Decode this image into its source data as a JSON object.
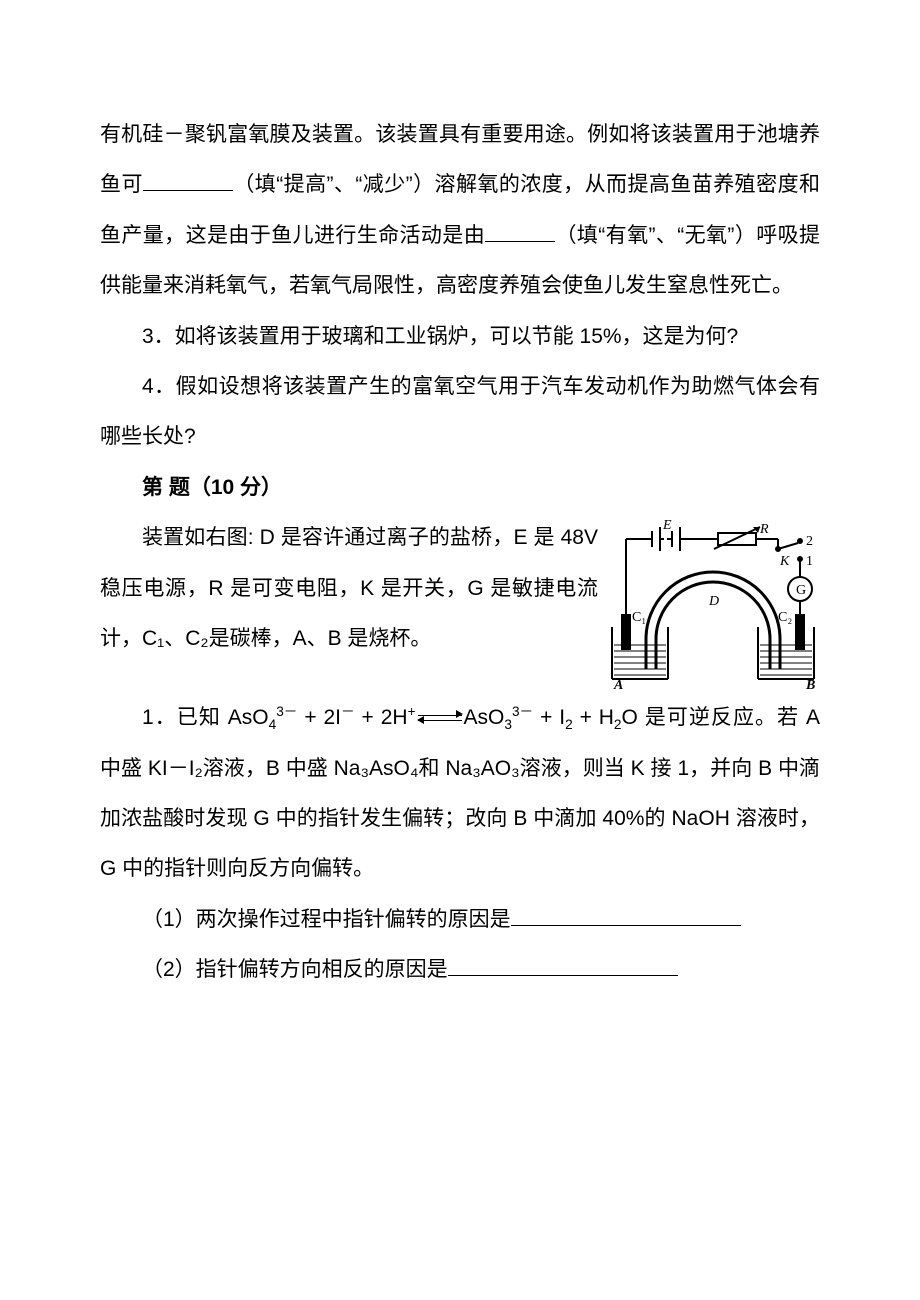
{
  "paragraphs": {
    "p1_a": "有机硅－聚钒富氧膜及装置。该装置具有重要用途。例如将该装置用于池塘养鱼可",
    "p1_b": "（填“提高”、“减少”）溶解氧的浓度，从而提高鱼苗养殖密度和鱼产量，这是由于鱼儿进行生命活动是由",
    "p1_c": "（填“有氧”、“无氧”）呼吸提供能量来消耗氧气，若氧气局限性，高密度养殖会使鱼儿发生窒息性死亡。",
    "p2": "3．如将该装置用于玻璃和工业锅炉，可以节能 15%，这是为何?",
    "p3": "4．假如设想将该装置产生的富氧空气用于汽车发动机作为助燃气体会有哪些长处?",
    "heading": "第 题（10 分）",
    "p4": "装置如右图: D 是容许通过离子的盐桥，E 是 48V 稳压电源，R 是可变电阻，K 是开关，G 是敏捷电流计，C₁、C₂是碳棒，A、B 是烧杯。",
    "p5_a": "1．已知 AsO",
    "p5_b": " + 2I",
    "p5_c": " + 2H",
    "p5_d": "AsO",
    "p5_e": " + I",
    "p5_f": " + H",
    "p5_g": "O 是可逆反应。若 A 中盛 KI－I₂溶液，B 中盛 Na₃AsO₄和 Na₃AO₃溶液，则当 K 接 1，并向 B 中滴加浓盐酸时发现 G 中的指针发生偏转；改向 B 中滴加 40%的 NaOH 溶液时，G 中的指针则向反方向偏转。",
    "q1": "（1）两次操作过程中指针偏转的原因是",
    "q2": "（2）指针偏转方向相反的原因是"
  },
  "blanks": {
    "w_short": 90,
    "w_med": 70,
    "w_long": 230
  },
  "figure": {
    "labels": {
      "E": "E",
      "R": "R",
      "K": "K",
      "G": "G",
      "D": "D",
      "C1": "C₁",
      "C2": "C₂",
      "A": "A",
      "B": "B",
      "one": "1",
      "two": "2"
    },
    "colors": {
      "stroke": "#000000",
      "fill_liquid": "#9a9a9a"
    },
    "stroke_width": 2
  },
  "typography": {
    "font_size_pt": 16,
    "line_height": 2.4,
    "body_color": "#000000",
    "background": "#ffffff"
  }
}
